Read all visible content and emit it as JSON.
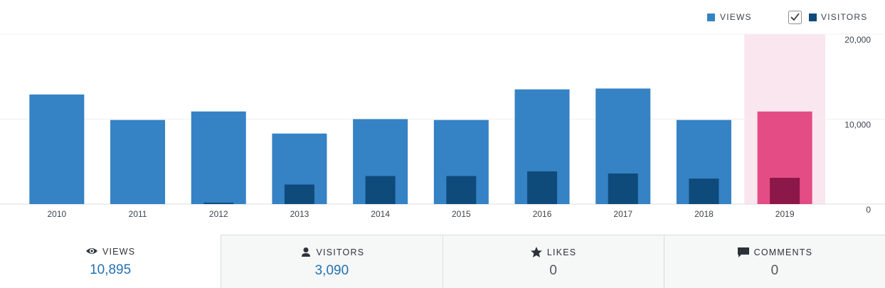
{
  "chart_data": {
    "type": "bar",
    "categories": [
      "2010",
      "2011",
      "2012",
      "2013",
      "2014",
      "2015",
      "2016",
      "2017",
      "2018",
      "2019"
    ],
    "series": [
      {
        "name": "VIEWS",
        "color": "#3582c4",
        "highlight_color": "#e34c84",
        "values": [
          12900,
          9900,
          10900,
          8300,
          10000,
          9900,
          13500,
          13600,
          9900,
          10895
        ]
      },
      {
        "name": "VISITORS",
        "color": "#0e4b7a",
        "highlight_color": "#8c1749",
        "values": [
          0,
          0,
          170,
          2300,
          3300,
          3300,
          3850,
          3600,
          3000,
          3090
        ]
      }
    ],
    "selected": "2019",
    "selected_background": "#f9e6ee",
    "ylim": [
      0,
      20000
    ],
    "yticks": [
      0,
      {
        "value": 10000,
        "label": "10,000"
      },
      {
        "value": 20000,
        "label": "20,000"
      }
    ],
    "grid": true
  },
  "summary": [
    {
      "label": "VIEWS",
      "value": "10,895"
    },
    {
      "label": "VISITORS",
      "value": "3,090"
    },
    {
      "label": "LIKES",
      "value": "0"
    },
    {
      "label": "COMMENTS",
      "value": "0"
    }
  ]
}
